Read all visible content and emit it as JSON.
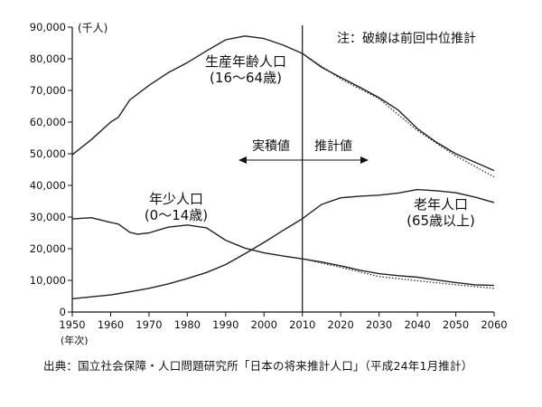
{
  "chart_data": {
    "type": "line",
    "ylabel": "(千人)",
    "xlabel": "(年次)",
    "ylim": [
      0,
      90000
    ],
    "xlim": [
      1950,
      2060
    ],
    "y_ticks": [
      0,
      10000,
      20000,
      30000,
      40000,
      50000,
      60000,
      70000,
      80000,
      90000
    ],
    "y_tick_labels": [
      "0",
      "10,000",
      "20,000",
      "30,000",
      "40,000",
      "50,000",
      "60,000",
      "70,000",
      "80,000",
      "90,000"
    ],
    "x_ticks": [
      1950,
      1960,
      1970,
      1980,
      1990,
      2000,
      2010,
      2020,
      2030,
      2040,
      2050,
      2060
    ],
    "x_tick_labels": [
      "1950",
      "1960",
      "1970",
      "1980",
      "1990",
      "2000",
      "2010",
      "2020",
      "2030",
      "2040",
      "2050",
      "2060"
    ],
    "note": "注：破線は前回中位推計",
    "divider_year": 2010,
    "divider_left_label": "実積値",
    "divider_right_label": "推計値",
    "series": [
      {
        "name": "生産年齢人口",
        "label_lines": [
          "生産年齢人口",
          "(16～64歳)"
        ],
        "x": [
          1950,
          1955,
          1960,
          1962,
          1965,
          1970,
          1975,
          1980,
          1985,
          1990,
          1995,
          2000,
          2005,
          2010,
          2015,
          2020,
          2025,
          2030,
          2035,
          2040,
          2045,
          2050,
          2055,
          2060
        ],
        "y": [
          49700,
          54500,
          60000,
          61500,
          67000,
          71600,
          75600,
          78800,
          82500,
          86000,
          87200,
          86400,
          84300,
          81700,
          77300,
          74100,
          71000,
          67700,
          63800,
          57900,
          53600,
          50000,
          47300,
          44700
        ]
      },
      {
        "name": "年少人口",
        "label_lines": [
          "年少人口",
          "(0～14歳)"
        ],
        "x": [
          1950,
          1955,
          1960,
          1962,
          1965,
          1967,
          1970,
          1975,
          1980,
          1985,
          1990,
          1995,
          2000,
          2005,
          2010,
          2015,
          2020,
          2025,
          2030,
          2035,
          2040,
          2045,
          2050,
          2055,
          2060
        ],
        "y": [
          29400,
          29800,
          28300,
          27800,
          25200,
          24600,
          25000,
          26800,
          27500,
          26600,
          22700,
          20200,
          18700,
          17700,
          16800,
          15800,
          14600,
          13200,
          12100,
          11500,
          11000,
          10100,
          9300,
          8600,
          8400
        ]
      },
      {
        "name": "老年人口",
        "label_lines": [
          "老年人口",
          "(65歳以上)"
        ],
        "x": [
          1950,
          1955,
          1960,
          1965,
          1970,
          1975,
          1980,
          1985,
          1990,
          1995,
          2000,
          2005,
          2008,
          2010,
          2015,
          2020,
          2025,
          2030,
          2035,
          2040,
          2045,
          2050,
          2055,
          2060
        ],
        "y": [
          4200,
          4800,
          5400,
          6400,
          7500,
          8900,
          10600,
          12500,
          15000,
          18400,
          22000,
          25800,
          28000,
          29500,
          34000,
          36100,
          36600,
          36900,
          37600,
          38700,
          38300,
          37700,
          36300,
          34600
        ]
      }
    ],
    "previous_projection_dashed": [
      {
        "series": "生産年齢人口",
        "x": [
          2010,
          2020,
          2030,
          2040,
          2050,
          2060
        ],
        "y": [
          81700,
          73600,
          67400,
          57300,
          49300,
          42700
        ]
      },
      {
        "series": "年少人口",
        "x": [
          2010,
          2020,
          2030,
          2040,
          2050,
          2060
        ],
        "y": [
          16800,
          14100,
          11200,
          9900,
          8600,
          7500
        ]
      }
    ]
  },
  "source_text": "出典：国立社会保障・人口問題研究所「日本の将来推計人口」（平成24年1月推計）"
}
